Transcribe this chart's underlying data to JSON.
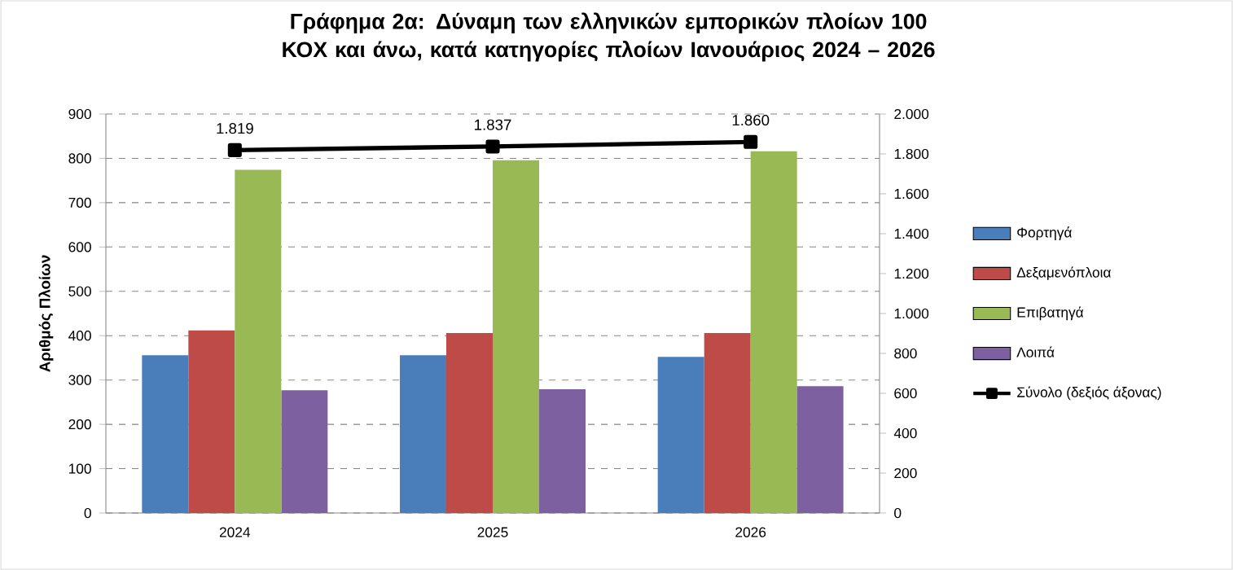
{
  "chart_data": {
    "type": "bar",
    "title": "Γράφημα 2α: Δύναμη των ελληνικών εμπορικών πλοίων 100 ΚΟΧ και άνω, κατά κατηγορίες πλοίων Ιανουάριος 2024 – 2026",
    "ylabel": "Αριθμός Πλοίων",
    "categories": [
      "2024",
      "2025",
      "2026"
    ],
    "series": [
      {
        "name": "Φορτηγά",
        "color": "#4a7ebb",
        "values": [
          356,
          356,
          352
        ]
      },
      {
        "name": "Δεξαμενόπλοια",
        "color": "#be4b48",
        "values": [
          412,
          406,
          406
        ]
      },
      {
        "name": "Επιβατηγά",
        "color": "#98b954",
        "values": [
          774,
          796,
          816
        ]
      },
      {
        "name": "Λοιπά",
        "color": "#7d60a0",
        "values": [
          277,
          279,
          286
        ]
      },
      {
        "name": "Σύνολο (δεξιός άξονας)",
        "color": "#000000",
        "type": "line",
        "axis": "y2",
        "marker": "square",
        "values": [
          1819,
          1837,
          1860
        ],
        "value_labels": [
          "1.819",
          "1.837",
          "1.860"
        ]
      }
    ],
    "ylim": [
      0,
      900
    ],
    "yticks": [
      0,
      100,
      200,
      300,
      400,
      500,
      600,
      700,
      800,
      900
    ],
    "y2lim": [
      0,
      2000
    ],
    "y2ticks": [
      0,
      200,
      400,
      600,
      800,
      {
        "value": 1000,
        "label": "1.000"
      },
      {
        "value": 1200,
        "label": "1.200"
      },
      {
        "value": 1400,
        "label": "1.400"
      },
      {
        "value": 1600,
        "label": "1.600"
      },
      {
        "value": 1800,
        "label": "1.800"
      },
      {
        "value": 2000,
        "label": "2.000"
      }
    ],
    "grid": "y",
    "legend": "right"
  }
}
